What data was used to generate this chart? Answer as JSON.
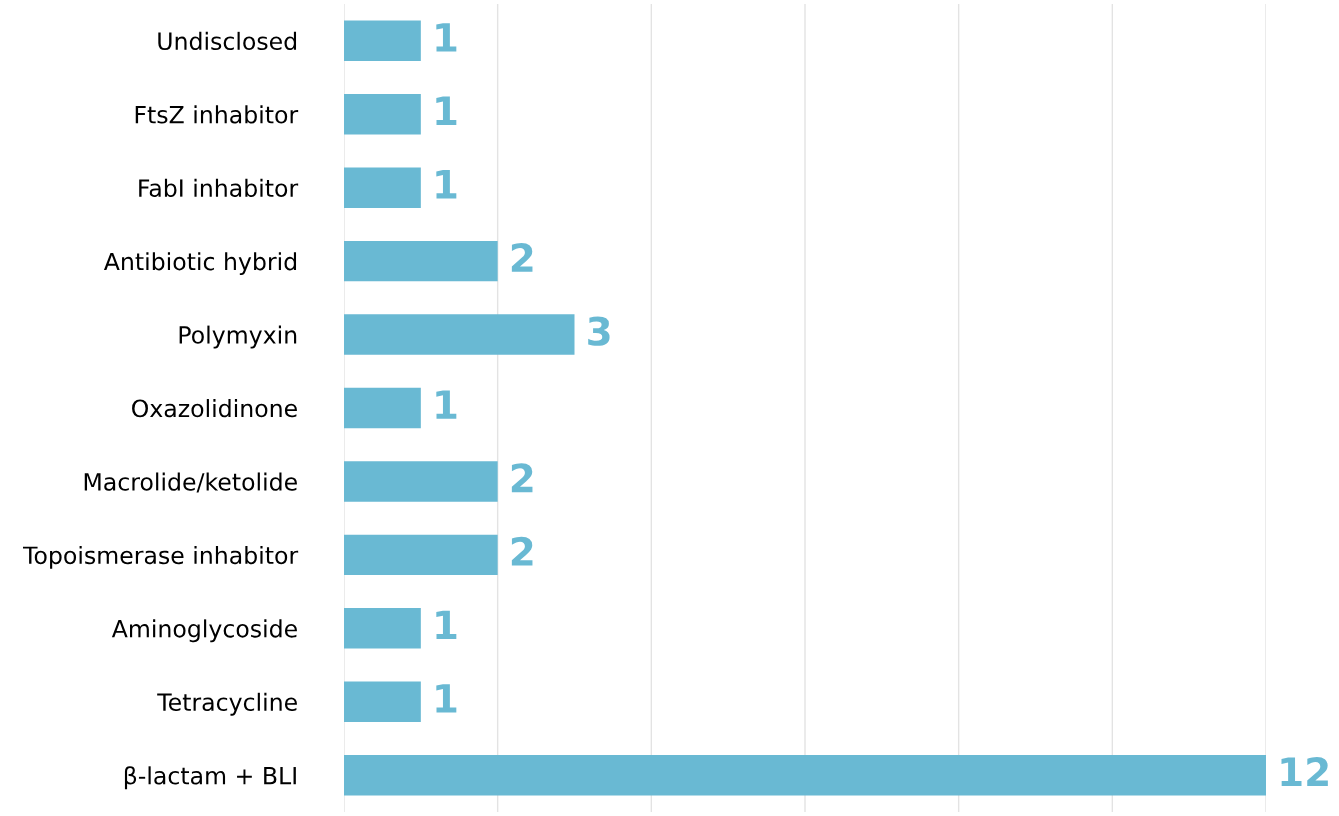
{
  "chart_data": {
    "type": "bar",
    "orientation": "horizontal",
    "categories": [
      "Undisclosed",
      "FtsZ inhabitor",
      "FabI inhabitor",
      "Antibiotic hybrid",
      "Polymyxin",
      "Oxazolidinone",
      "Macrolide/ketolide",
      "Topoismerase inhabitor",
      "Aminoglycoside",
      "Tetracycline",
      "β-lactam + BLI"
    ],
    "values": [
      1,
      1,
      1,
      2,
      3,
      1,
      2,
      2,
      1,
      1,
      12
    ],
    "color": "#69b9d3",
    "xlim": [
      0,
      12
    ],
    "xticks": [
      {
        "value": 0,
        "label": null
      },
      {
        "value": 2,
        "label": null
      },
      {
        "value": 4,
        "label": null
      },
      {
        "value": 6,
        "label": null
      },
      {
        "value": 8,
        "label": null
      },
      {
        "value": 10,
        "label": null
      },
      {
        "value": 12,
        "label": null
      }
    ],
    "grid": "x",
    "tick_labels": "y",
    "data_labels": true,
    "legend": false
  }
}
